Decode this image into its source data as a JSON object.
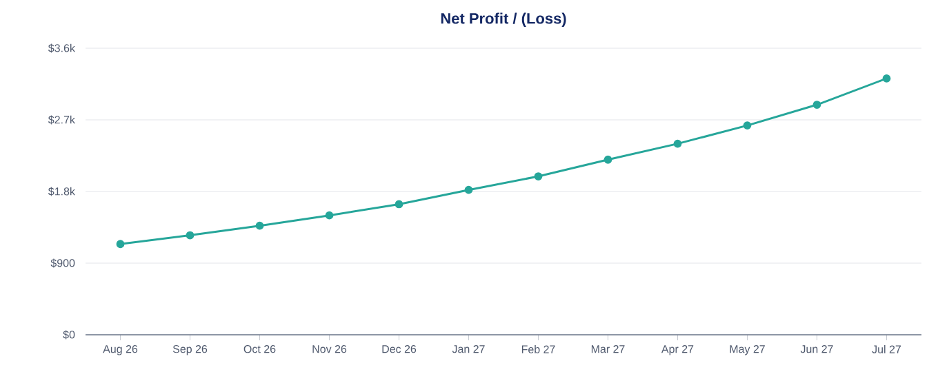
{
  "chart_data": {
    "type": "line",
    "title": "Net Profit / (Loss)",
    "categories": [
      "Aug 26",
      "Sep 26",
      "Oct 26",
      "Nov 26",
      "Dec 26",
      "Jan 27",
      "Feb 27",
      "Mar 27",
      "Apr 27",
      "May 27",
      "Jun 27",
      "Jul 27"
    ],
    "series": [
      {
        "color": "#26a69a",
        "values": [
          1140,
          1250,
          1370,
          1500,
          1640,
          1820,
          1990,
          2200,
          2400,
          2630,
          2890,
          3220
        ]
      }
    ],
    "ylim": [
      0,
      3600
    ],
    "yticks": [
      {
        "value": 0,
        "label": "$0"
      },
      {
        "value": 900,
        "label": "$900"
      },
      {
        "value": 1800,
        "label": "$1.8k"
      },
      {
        "value": 2700,
        "label": "$2.7k"
      },
      {
        "value": 3600,
        "label": "$3.6k"
      }
    ],
    "grid": "y",
    "marker": "circle",
    "line_style": "solid"
  }
}
